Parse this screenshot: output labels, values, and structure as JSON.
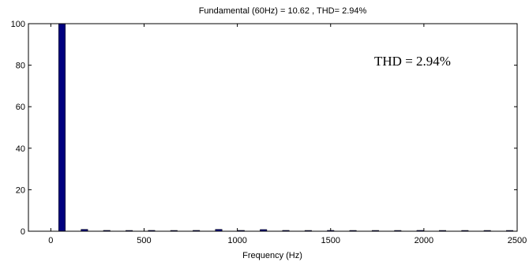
{
  "chart_data": {
    "type": "bar",
    "title": "Fundamental (60Hz) = 10.62 , THD= 2.94%",
    "xlabel": "Frequency (Hz)",
    "ylabel": "",
    "xlim": [
      -120,
      2500
    ],
    "ylim": [
      0,
      100
    ],
    "xticks": [
      0,
      500,
      1000,
      1500,
      2000,
      2500
    ],
    "yticks": [
      0,
      20,
      40,
      60,
      80,
      100
    ],
    "annotation": "THD = 2.94%",
    "bar_color": "#00007f",
    "grid": false,
    "bar_width_hz": 36,
    "x": [
      60,
      180,
      300,
      420,
      540,
      660,
      780,
      900,
      1020,
      1140,
      1260,
      1380,
      1500,
      1620,
      1740,
      1860,
      1980,
      2100,
      2220,
      2340,
      2460
    ],
    "values": [
      100,
      0.9,
      0.4,
      0.3,
      0.4,
      0.3,
      0.4,
      0.9,
      0.4,
      0.8,
      0.4,
      0.3,
      0.4,
      0.3,
      0.3,
      0.3,
      0.4,
      0.3,
      0.3,
      0.3,
      0.3
    ]
  }
}
